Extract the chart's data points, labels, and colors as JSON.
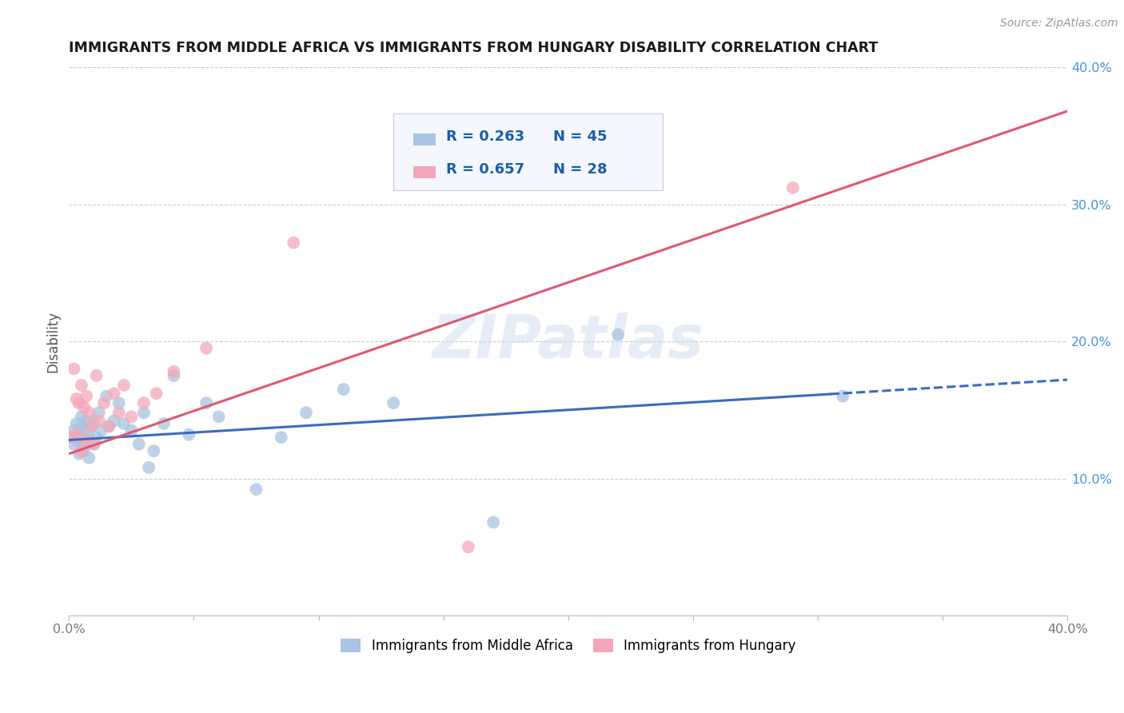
{
  "title": "IMMIGRANTS FROM MIDDLE AFRICA VS IMMIGRANTS FROM HUNGARY DISABILITY CORRELATION CHART",
  "source": "Source: ZipAtlas.com",
  "ylabel": "Disability",
  "watermark": "ZIPatlas",
  "xlim": [
    0.0,
    0.4
  ],
  "ylim": [
    0.0,
    0.4
  ],
  "series": [
    {
      "name": "Immigrants from Middle Africa",
      "color": "#a8c4e0",
      "R": 0.263,
      "N": 45,
      "x": [
        0.001,
        0.002,
        0.002,
        0.003,
        0.003,
        0.004,
        0.004,
        0.005,
        0.005,
        0.005,
        0.006,
        0.006,
        0.007,
        0.007,
        0.008,
        0.008,
        0.009,
        0.01,
        0.01,
        0.011,
        0.012,
        0.013,
        0.015,
        0.016,
        0.018,
        0.02,
        0.022,
        0.025,
        0.028,
        0.03,
        0.032,
        0.034,
        0.038,
        0.042,
        0.048,
        0.055,
        0.06,
        0.075,
        0.085,
        0.095,
        0.11,
        0.13,
        0.17,
        0.22,
        0.31
      ],
      "y": [
        0.13,
        0.125,
        0.135,
        0.128,
        0.14,
        0.118,
        0.132,
        0.126,
        0.138,
        0.145,
        0.12,
        0.135,
        0.128,
        0.142,
        0.115,
        0.13,
        0.138,
        0.125,
        0.142,
        0.13,
        0.148,
        0.135,
        0.16,
        0.138,
        0.142,
        0.155,
        0.14,
        0.135,
        0.125,
        0.148,
        0.108,
        0.12,
        0.14,
        0.175,
        0.132,
        0.155,
        0.145,
        0.092,
        0.13,
        0.148,
        0.165,
        0.155,
        0.068,
        0.205,
        0.16
      ]
    },
    {
      "name": "Immigrants from Hungary",
      "color": "#f4a7b9",
      "R": 0.657,
      "N": 28,
      "x": [
        0.001,
        0.002,
        0.003,
        0.003,
        0.004,
        0.005,
        0.005,
        0.006,
        0.007,
        0.007,
        0.008,
        0.009,
        0.01,
        0.011,
        0.012,
        0.014,
        0.016,
        0.018,
        0.02,
        0.022,
        0.025,
        0.03,
        0.035,
        0.042,
        0.055,
        0.09,
        0.16,
        0.29
      ],
      "y": [
        0.13,
        0.18,
        0.158,
        0.132,
        0.155,
        0.12,
        0.168,
        0.152,
        0.16,
        0.128,
        0.148,
        0.138,
        0.125,
        0.175,
        0.142,
        0.155,
        0.138,
        0.162,
        0.148,
        0.168,
        0.145,
        0.155,
        0.162,
        0.178,
        0.195,
        0.272,
        0.05,
        0.312
      ]
    }
  ],
  "trend_blue": {
    "color": "#3a6bbf",
    "x_start": 0.0,
    "y_start": 0.128,
    "x_end": 0.4,
    "y_end": 0.172,
    "dashed_from": 0.305
  },
  "trend_pink": {
    "color": "#e05870",
    "x_start": 0.0,
    "y_start": 0.118,
    "x_end": 0.4,
    "y_end": 0.368
  },
  "title_color": "#1a1a1a",
  "title_fontsize": 12.5,
  "axis_label_color": "#555555",
  "tick_color": "#777777",
  "grid_color": "#cccccc",
  "background_color": "#ffffff",
  "right_ytick_color": "#4a90d9",
  "legend_R_color": "#1a5fa8"
}
